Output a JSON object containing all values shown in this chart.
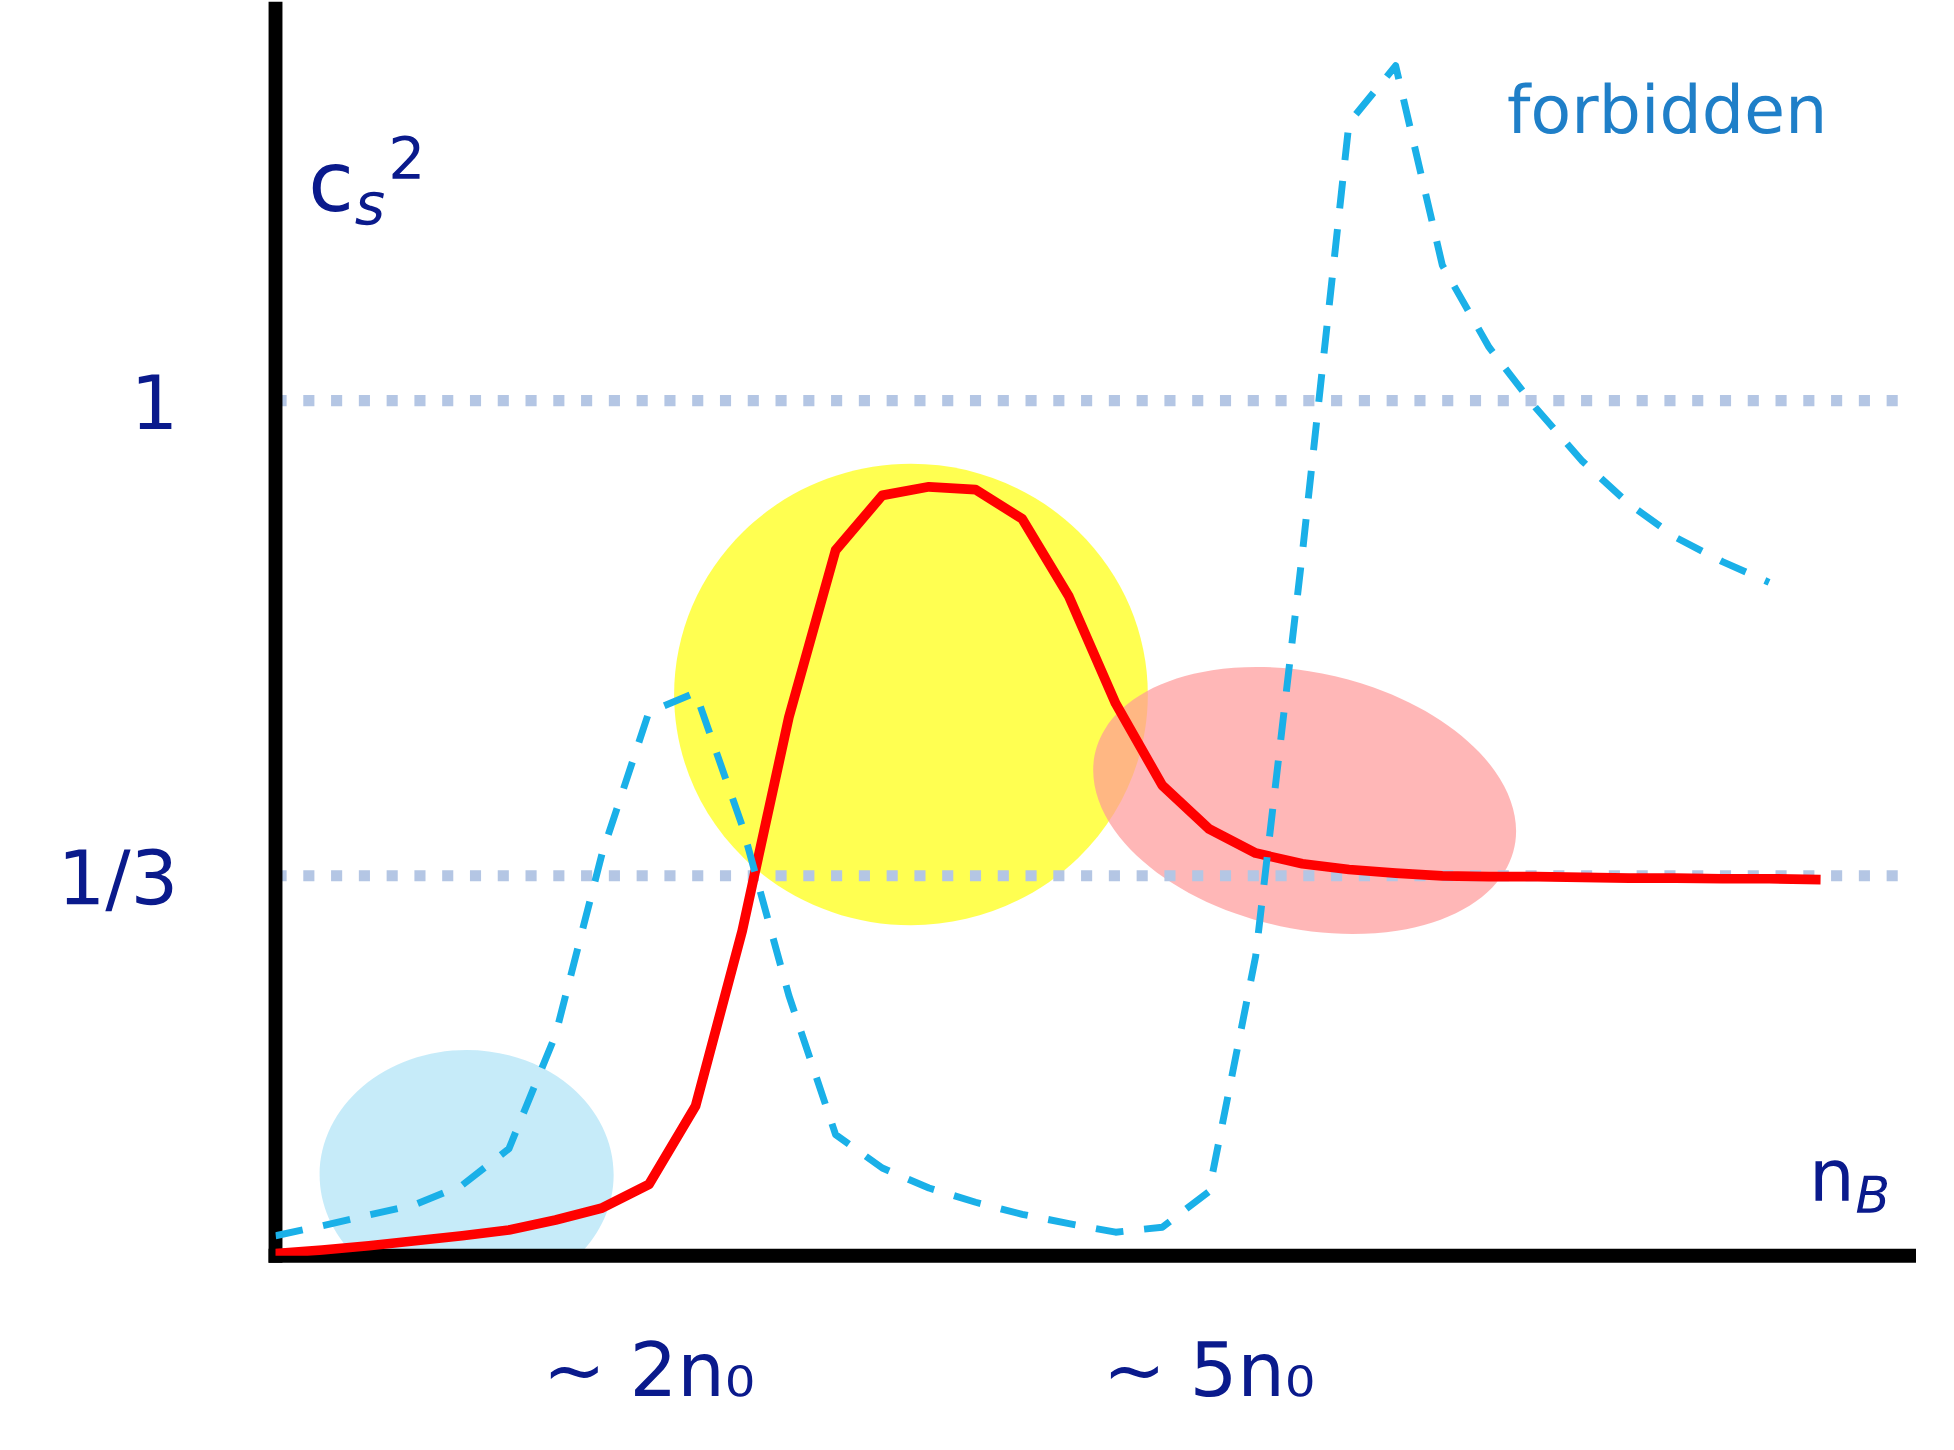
{
  "chart_data": {
    "type": "line",
    "xlabel": "n$_{B}$",
    "ylabel": "c$_{s}$$^{2}$",
    "annotations": [
      "forbidden"
    ],
    "categories": [
      null,
      null,
      null,
      null,
      null,
      null,
      null,
      null,
      "~ 2n₀",
      null,
      null,
      null,
      null,
      null,
      null,
      null,
      null,
      null,
      null,
      null,
      "~ 5n₀",
      null,
      null,
      null,
      null,
      null,
      null,
      null,
      null,
      null,
      null,
      null,
      null,
      null,
      null,
      null
    ],
    "ylim": [
      -0.2,
      1.55
    ],
    "yticks": [
      {
        "value": 0.3333,
        "label": "1/3"
      },
      {
        "value": 1,
        "label": "1"
      }
    ],
    "ref_lines": [
      {
        "axis": "y",
        "value": 0.3333,
        "color": "#b4c6e4",
        "line_style": "dotted"
      },
      {
        "axis": "y",
        "value": 1,
        "color": "#b4c6e4",
        "line_style": "dotted"
      }
    ],
    "grid": false,
    "legend": false,
    "series": [
      {
        "color": "#ff0000",
        "line_style": "solid",
        "values": [
          -0.197,
          -0.192,
          -0.186,
          -0.179,
          -0.172,
          -0.164,
          -0.15,
          -0.133,
          -0.1,
          0.01,
          0.256,
          0.556,
          0.79,
          0.867,
          0.879,
          0.875,
          0.834,
          0.725,
          0.575,
          0.46,
          0.399,
          0.365,
          0.35,
          0.342,
          0.337,
          0.333,
          0.332,
          0.332,
          0.331,
          0.33,
          0.33,
          0.329,
          0.329,
          0.328,
          null,
          null
        ]
      },
      {
        "color": "#1ab0e8",
        "line_style": "dashed",
        "values": [
          -0.172,
          -0.158,
          -0.143,
          -0.128,
          -0.101,
          -0.05,
          0.11,
          0.365,
          0.563,
          0.59,
          0.403,
          0.165,
          -0.03,
          -0.077,
          -0.105,
          -0.125,
          -0.142,
          -0.155,
          -0.167,
          -0.16,
          -0.11,
          0.22,
          0.785,
          1.39,
          1.47,
          1.19,
          1.075,
          0.99,
          0.915,
          0.855,
          0.808,
          0.774,
          0.745,
          null,
          null,
          null
        ]
      }
    ]
  }
}
